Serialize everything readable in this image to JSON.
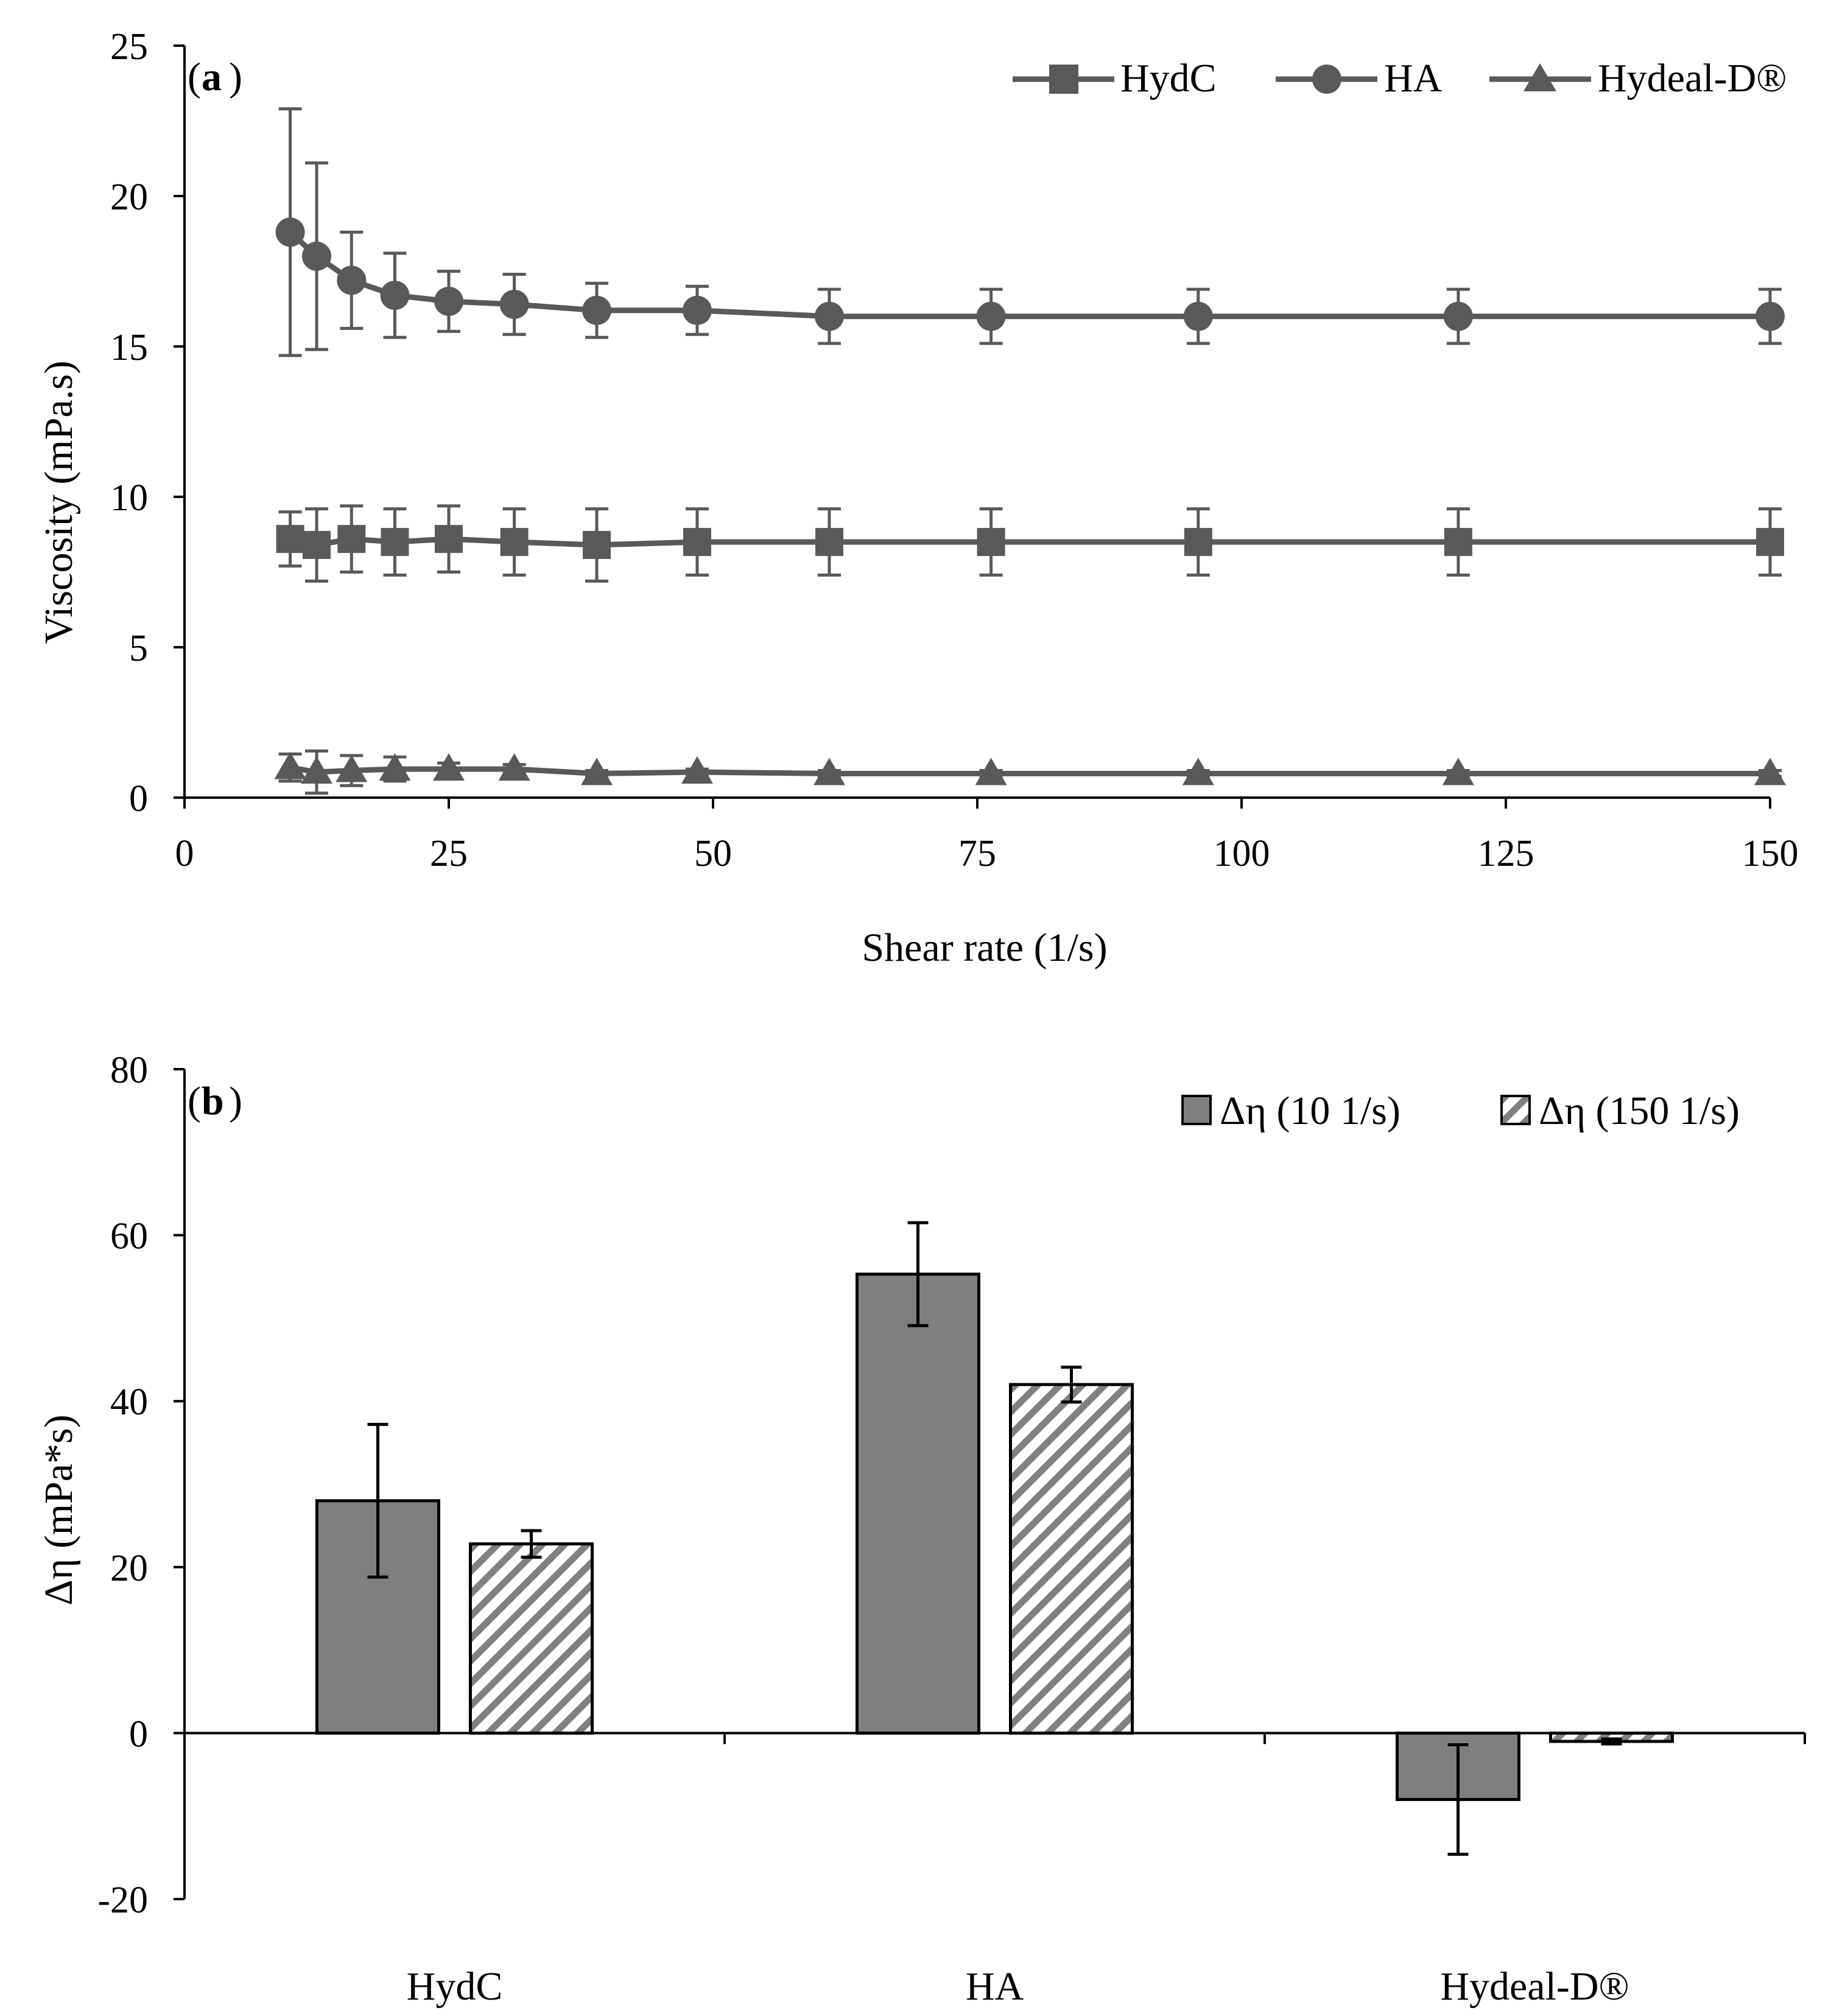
{
  "colors": {
    "series": "#595959",
    "bar_solid": "#7f7f7f",
    "hatch_stripe": "#808080",
    "axis": "#000000"
  },
  "chart_data": [
    {
      "type": "line",
      "panel_label": "a",
      "xlabel": "Shear rate (1/s)",
      "ylabel": "Viscosity (mPa.s)",
      "xlim": [
        0,
        150
      ],
      "ylim": [
        0,
        25
      ],
      "xticks": [
        0,
        25,
        50,
        75,
        100,
        125,
        150
      ],
      "yticks": [
        0,
        5,
        10,
        15,
        20,
        25
      ],
      "legend_position": "top-right",
      "grid": false,
      "x": [
        10,
        12.5,
        15.8,
        19.9,
        25,
        31.2,
        39,
        48.5,
        61,
        76.3,
        95.9,
        120.5,
        150
      ],
      "series": [
        {
          "name": "HydC",
          "marker": "square",
          "values": [
            8.6,
            8.4,
            8.6,
            8.5,
            8.6,
            8.5,
            8.4,
            8.5,
            8.5,
            8.5,
            8.5,
            8.5,
            8.5
          ],
          "errors": [
            0.9,
            1.2,
            1.1,
            1.1,
            1.1,
            1.1,
            1.2,
            1.1,
            1.1,
            1.1,
            1.1,
            1.1,
            1.1
          ]
        },
        {
          "name": "HA",
          "marker": "circle",
          "values": [
            18.8,
            18.0,
            17.2,
            16.7,
            16.5,
            16.4,
            16.2,
            16.2,
            16.0,
            16.0,
            16.0,
            16.0,
            16.0
          ],
          "errors": [
            4.1,
            3.1,
            1.6,
            1.4,
            1.0,
            1.0,
            0.9,
            0.8,
            0.9,
            0.9,
            0.9,
            0.9,
            0.9
          ]
        },
        {
          "name": "Hydeal-D®",
          "marker": "triangle",
          "values": [
            1.0,
            0.85,
            0.9,
            0.95,
            0.95,
            0.95,
            0.8,
            0.85,
            0.8,
            0.8,
            0.8,
            0.8,
            0.8
          ],
          "errors": [
            0.45,
            0.7,
            0.5,
            0.4,
            0.2,
            0.15,
            0.1,
            0.1,
            0.1,
            0.1,
            0.1,
            0.1,
            0.1
          ]
        }
      ]
    },
    {
      "type": "bar",
      "panel_label": "b",
      "xlabel": "",
      "ylabel": "Δη (mPa*s)",
      "ylim": [
        -20,
        80
      ],
      "yticks": [
        -20,
        0,
        20,
        40,
        60,
        80
      ],
      "categories": [
        "HydC",
        "HA",
        "Hydeal-D®"
      ],
      "legend_position": "top-right",
      "grid": false,
      "series": [
        {
          "name": "Δη (10 1/s)",
          "fill": "solid",
          "values": [
            28,
            55.3,
            -8
          ],
          "errors": [
            9.2,
            6.2,
            6.6
          ]
        },
        {
          "name": "Δη (150 1/s)",
          "fill": "hatched",
          "values": [
            22.8,
            42,
            -1
          ],
          "errors": [
            1.6,
            2.1,
            0.3
          ]
        }
      ]
    }
  ]
}
